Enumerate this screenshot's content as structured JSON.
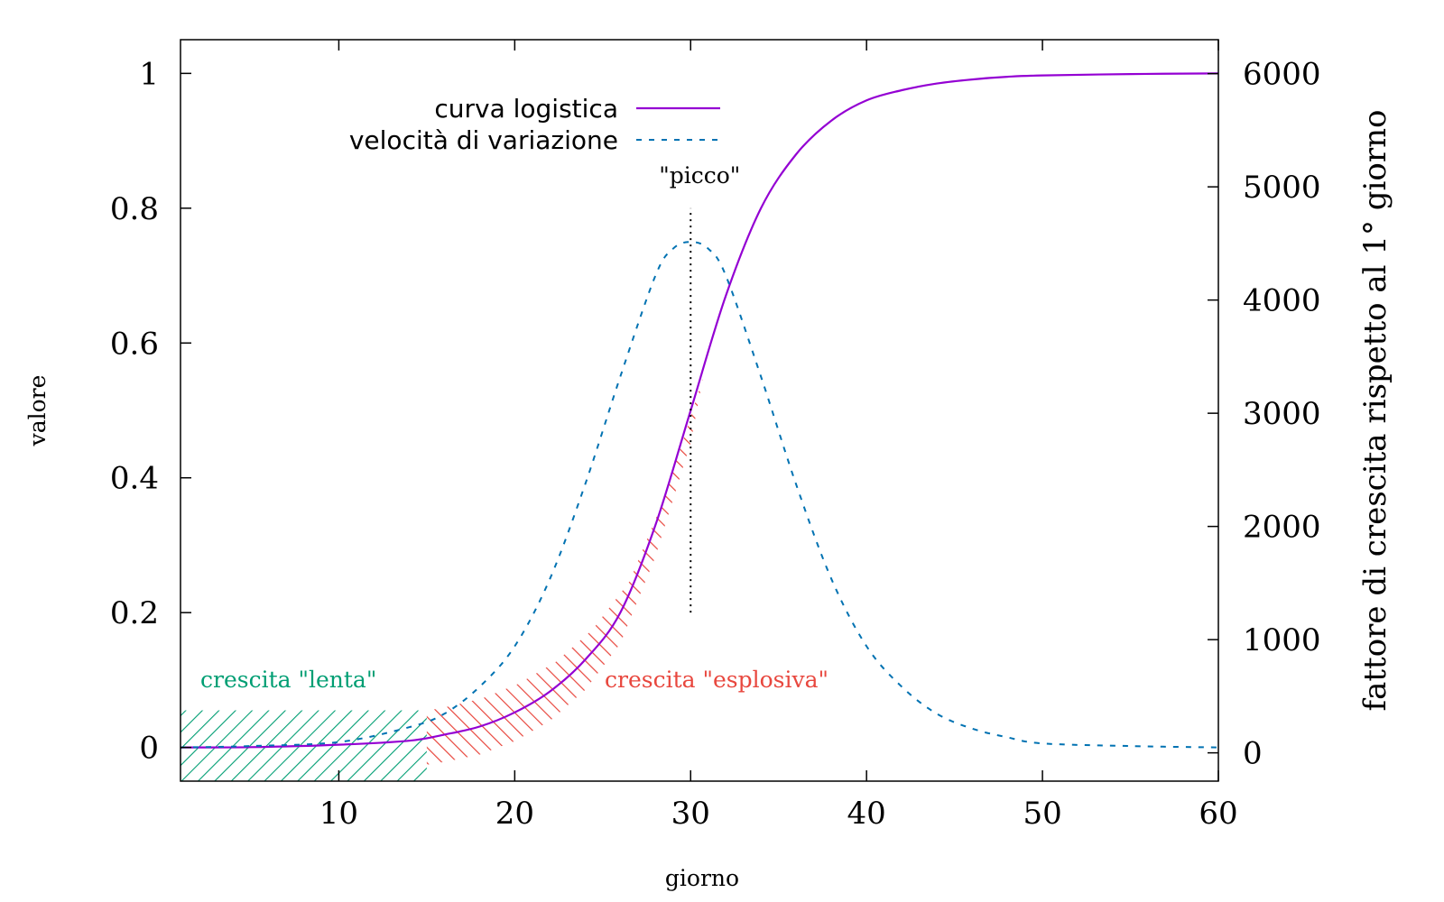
{
  "chart_data": {
    "type": "line",
    "xlabel": "giorno",
    "ylabel_left": "valore",
    "ylabel_right": "fattore di crescita rispetto al 1° giorno",
    "xlim": [
      1,
      60
    ],
    "ylim_left": [
      -0.05,
      1.05
    ],
    "ylim_right": [
      -250,
      6300
    ],
    "x_ticks": [
      10,
      20,
      30,
      40,
      50,
      60
    ],
    "x_tick_labels": [
      "10",
      "20",
      "30",
      "40",
      "50",
      "60"
    ],
    "y_left_ticks": [
      0,
      0.2,
      0.4,
      0.6,
      0.8,
      1
    ],
    "y_left_tick_labels": [
      "0",
      "0.2",
      "0.4",
      "0.6",
      "0.8",
      "1"
    ],
    "y_right_ticks": [
      0,
      1000,
      2000,
      3000,
      4000,
      5000,
      6000
    ],
    "y_right_tick_labels": [
      "0",
      "1000",
      "2000",
      "3000",
      "4000",
      "5000",
      "6000"
    ],
    "grid": false,
    "legend_position": "top-left",
    "series": [
      {
        "name": "curva logistica",
        "style": "solid",
        "color": "#9400d3",
        "axis": "left",
        "x": [
          1,
          5,
          10,
          14,
          16,
          18,
          20,
          22,
          24,
          26,
          28,
          30,
          32,
          34,
          36,
          38,
          40,
          42,
          44,
          46,
          48,
          50,
          55,
          60
        ],
        "y": [
          0.0,
          0.0005,
          0.004,
          0.01,
          0.019,
          0.031,
          0.052,
          0.083,
          0.13,
          0.2,
          0.33,
          0.5,
          0.67,
          0.8,
          0.88,
          0.93,
          0.96,
          0.975,
          0.985,
          0.991,
          0.995,
          0.997,
          0.999,
          1.0
        ]
      },
      {
        "name": "velocità di variazione",
        "style": "dashed",
        "color": "#0072b2",
        "axis": "left",
        "x": [
          1,
          5,
          10,
          14,
          16,
          18,
          20,
          22,
          24,
          26,
          28,
          29,
          30,
          31,
          32,
          34,
          36,
          38,
          40,
          42,
          44,
          46,
          48,
          50,
          55,
          60
        ],
        "y": [
          0.0,
          0.002,
          0.008,
          0.03,
          0.05,
          0.09,
          0.15,
          0.25,
          0.39,
          0.55,
          0.7,
          0.74,
          0.75,
          0.74,
          0.7,
          0.55,
          0.39,
          0.25,
          0.15,
          0.09,
          0.05,
          0.028,
          0.015,
          0.006,
          0.002,
          0.0
        ]
      }
    ],
    "peak_marker": {
      "x": 30,
      "y_from": 0.2,
      "y_to": 0.8,
      "label": "\"picco\""
    },
    "regions": [
      {
        "label": "crescita \"lenta\"",
        "color": "#009e73",
        "x_from": 1,
        "x_to": 15,
        "y_from": -0.05,
        "y_to": 0.055
      },
      {
        "label": "crescita \"esplosiva\"",
        "color": "#e8473e",
        "x_from": 15,
        "x_to": 30,
        "band": "along logistic curve"
      }
    ]
  }
}
